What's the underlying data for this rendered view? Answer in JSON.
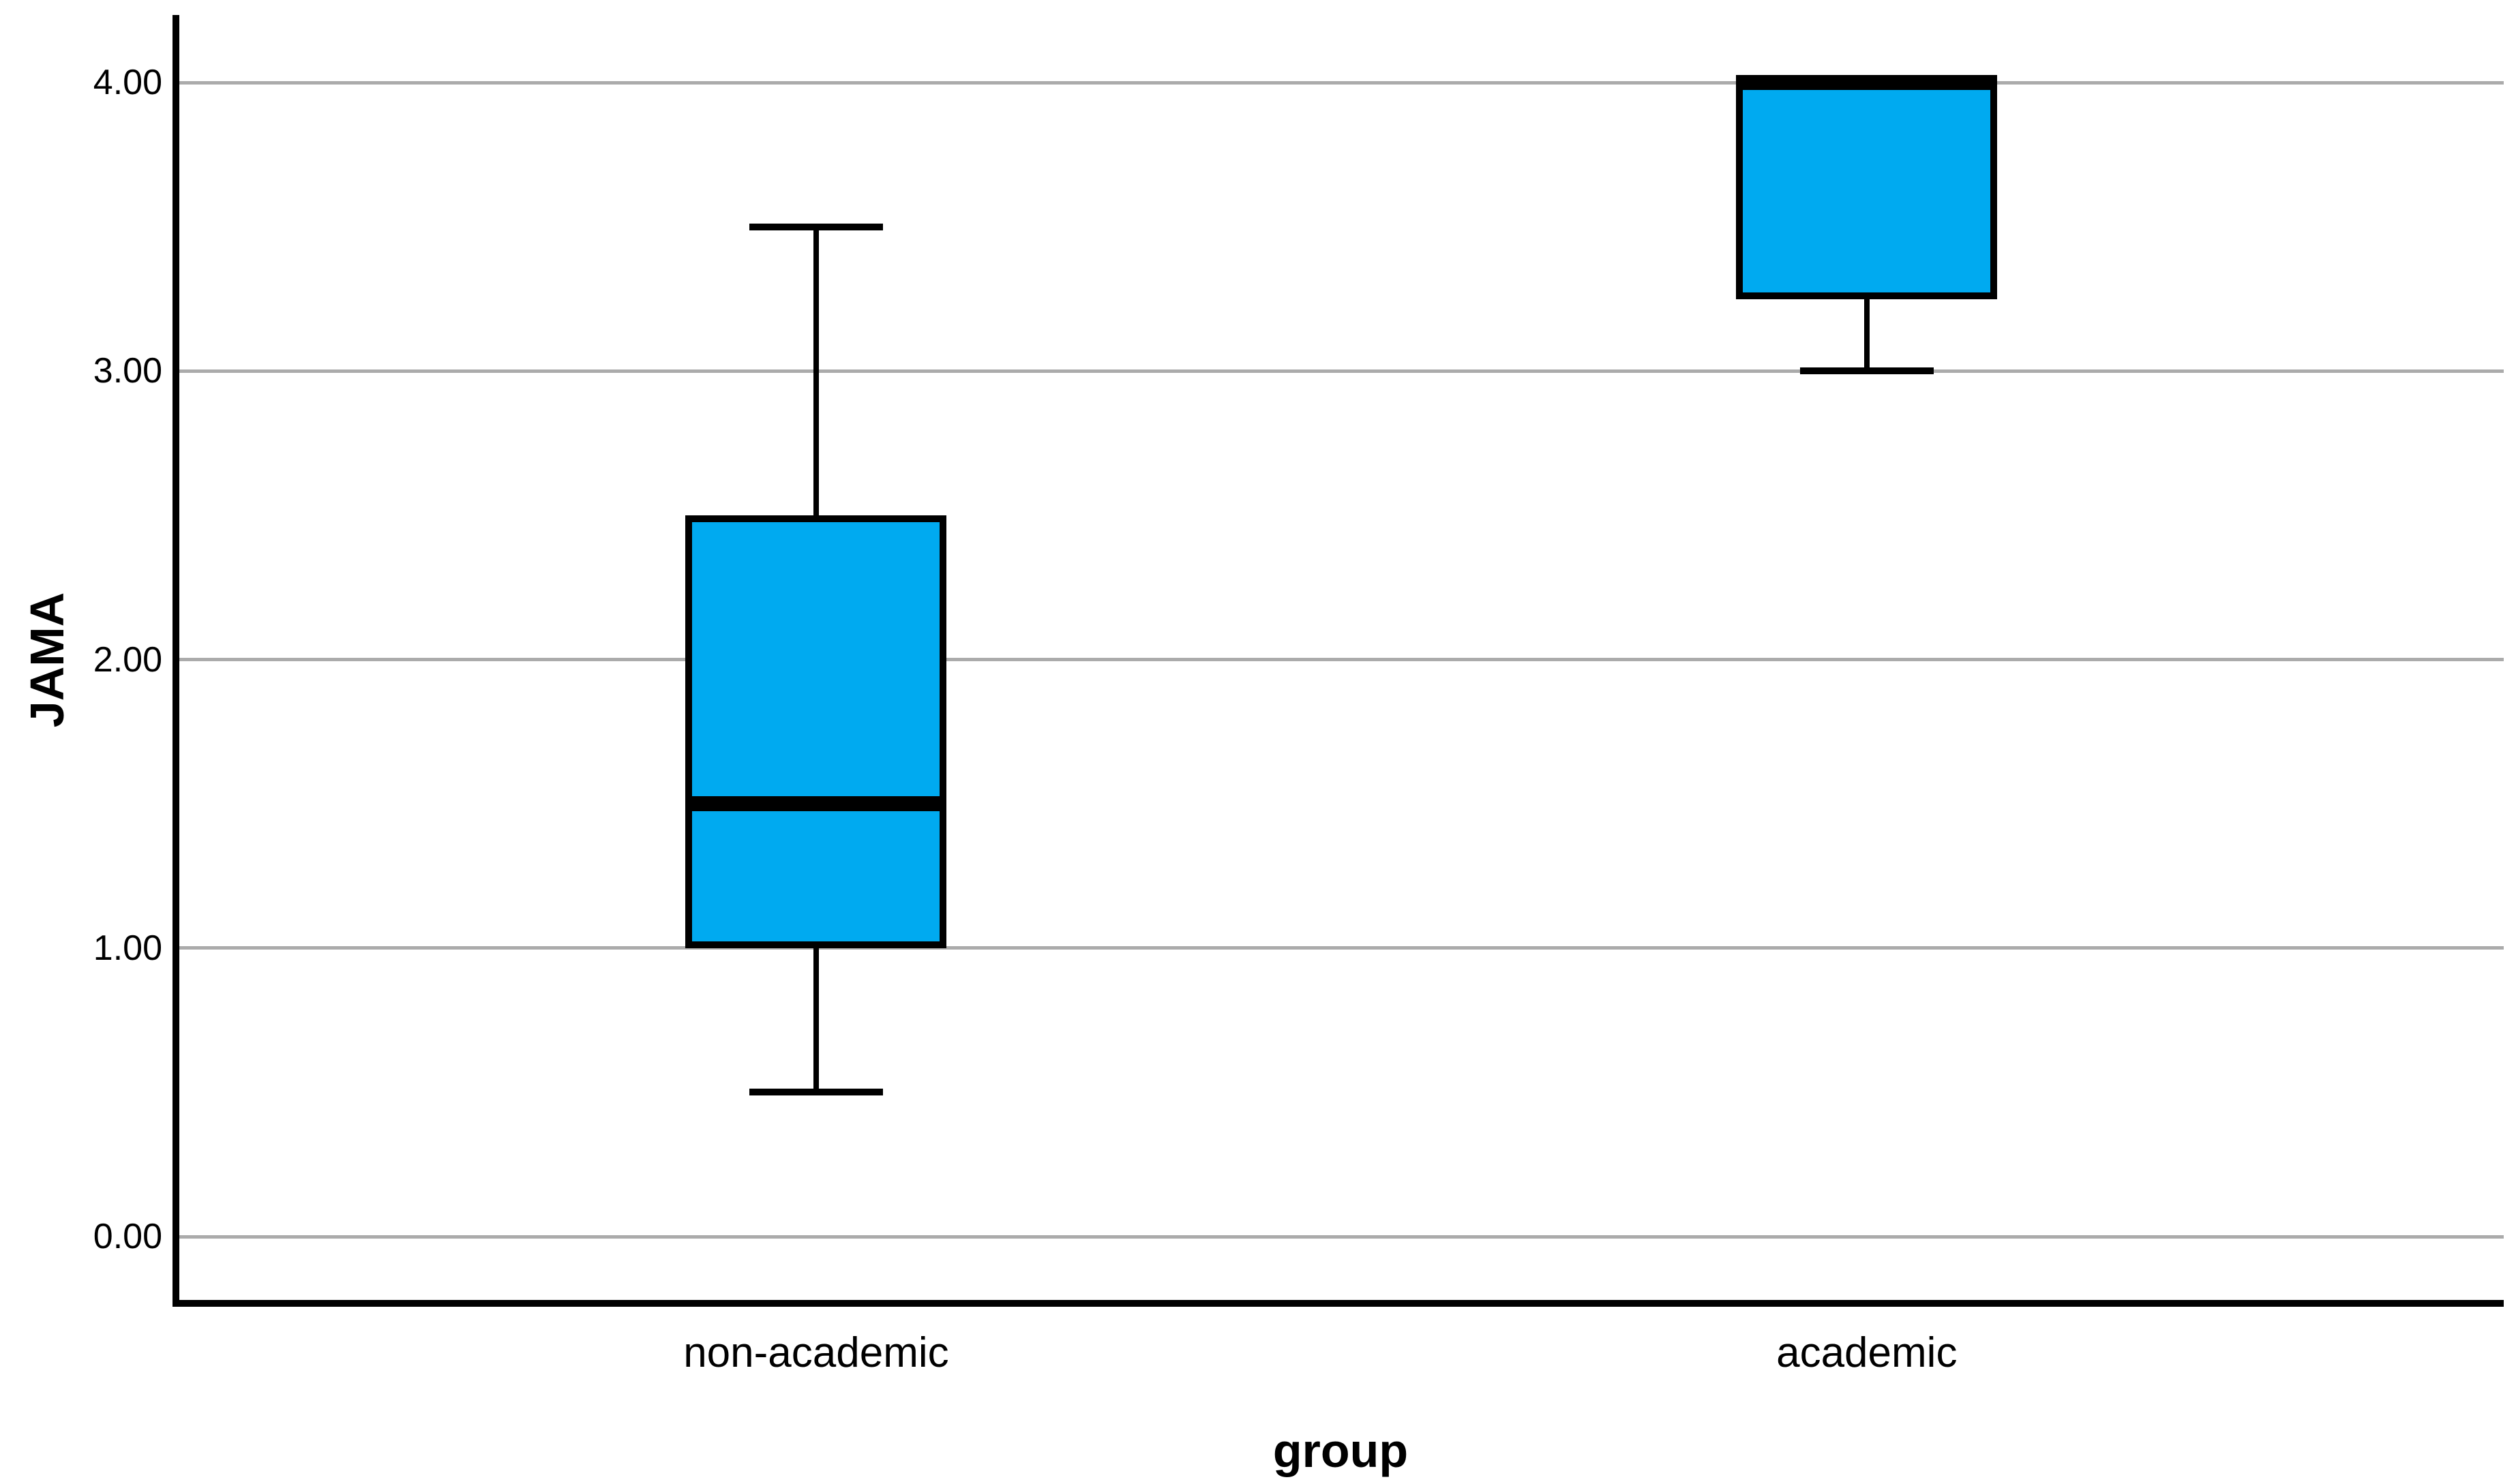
{
  "chart_data": {
    "type": "boxplot",
    "title": "",
    "xlabel": "group",
    "ylabel": "JAMA",
    "categories": [
      "non-academic",
      "academic"
    ],
    "series": [
      {
        "name": "JAMA",
        "values": [
          {
            "category": "non-academic",
            "whisker_low": 0.5,
            "q1": 1.0,
            "median": 1.5,
            "q3": 2.5,
            "whisker_high": 3.5
          },
          {
            "category": "academic",
            "whisker_low": 3.0,
            "q1": 3.25,
            "median": 4.0,
            "q3": 4.0,
            "whisker_high": 4.0
          }
        ]
      }
    ],
    "y_ticks": [
      0,
      1,
      2,
      3,
      4
    ],
    "y_tick_labels": [
      "0.00",
      "1.00",
      "2.00",
      "3.00",
      "4.00"
    ],
    "ylim": [
      -0.23,
      4.23
    ],
    "grid": "horizontal",
    "legend": "none",
    "colors": {
      "box_fill": "#00AAF0",
      "box_border": "#000000",
      "median": "#000000",
      "whisker": "#000000",
      "gridline": "#ABABAB",
      "axis": "#000000",
      "text": "#000000",
      "background": "#FFFFFF"
    }
  }
}
